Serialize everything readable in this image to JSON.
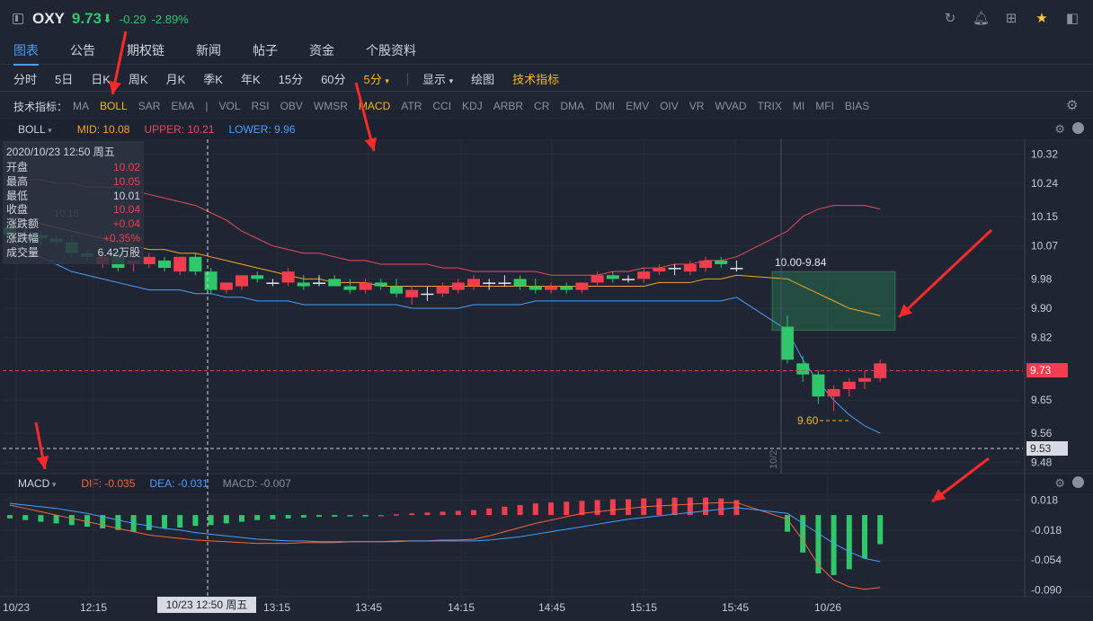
{
  "header": {
    "symbol": "OXY",
    "price": "9.73",
    "change": "-0.29",
    "change_pct": "-2.89%"
  },
  "tabs": [
    {
      "label": "图表"
    },
    {
      "label": "公告"
    },
    {
      "label": "期权链"
    },
    {
      "label": "新闻"
    },
    {
      "label": "帖子"
    },
    {
      "label": "资金"
    },
    {
      "label": "个股资料"
    }
  ],
  "periods": [
    "分时",
    "5日",
    "日K",
    "周K",
    "月K",
    "季K",
    "年K",
    "15分",
    "60分",
    "5分"
  ],
  "tools": {
    "display": "显示",
    "draw": "绘图",
    "indicators": "技术指标"
  },
  "indicators_bar": {
    "label": "技术指标：",
    "items": [
      "MA",
      "BOLL",
      "SAR",
      "EMA",
      "|",
      "VOL",
      "RSI",
      "OBV",
      "WMSR",
      "MACD",
      "ATR",
      "CCI",
      "KDJ",
      "ARBR",
      "CR",
      "DMA",
      "DMI",
      "EMV",
      "OIV",
      "VR",
      "WVAD",
      "TRIX",
      "MI",
      "MFI",
      "BIAS"
    ]
  },
  "boll_header": {
    "name": "BOLL",
    "mid": "MID: 10.08",
    "upper": "UPPER: 10.21",
    "lower": "LOWER: 9.96"
  },
  "macd_header": {
    "name": "MACD",
    "dif": "DIF: -0.035",
    "dea": "DEA: -0.031",
    "macd": "MACD: -0.007"
  },
  "info": {
    "datetime": "2020/10/23 12:50 周五",
    "rows": [
      {
        "k": "开盘",
        "v": "10.02",
        "c": "red"
      },
      {
        "k": "最高",
        "v": "10.05",
        "c": "red"
      },
      {
        "k": "最低",
        "v": "10.01",
        "c": "white"
      },
      {
        "k": "收盘",
        "v": "10.04",
        "c": "red"
      },
      {
        "k": "涨跌额",
        "v": "+0.04",
        "c": "red"
      },
      {
        "k": "涨跌幅",
        "v": "+0.35%",
        "c": "red"
      },
      {
        "k": "成交量",
        "v": "6.42万股",
        "c": "white"
      }
    ]
  },
  "price_axis": [
    "10.32",
    "10.24",
    "10.15",
    "10.07",
    "9.98",
    "9.90",
    "9.82",
    "9.73",
    "9.65",
    "9.56",
    "9.48"
  ],
  "price_marks": {
    "current": "9.73",
    "cursor": "9.53",
    "hl_label": "10.00-9.84",
    "low_label": "9.60",
    "prev": "10.16",
    "date_v": "10/2"
  },
  "macd_axis": [
    "0.018",
    "-0.018",
    "-0.054",
    "-0.090"
  ],
  "time_axis": [
    "10/23",
    "12:15",
    "13:15",
    "13:45",
    "14:15",
    "14:45",
    "15:15",
    "15:45",
    "10/26"
  ],
  "time_tip": "10/23 12:50 周五",
  "colors": {
    "up": "#f23d4f",
    "down": "#2ec76a",
    "mid": "#f5a623",
    "upper": "#e84a5f",
    "lower": "#4a9dff"
  }
}
